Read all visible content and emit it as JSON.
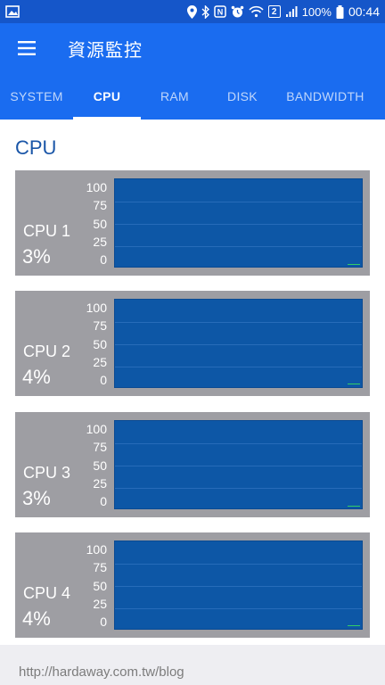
{
  "status_bar": {
    "battery_text": "100%",
    "time": "00:44",
    "notification_count": "2",
    "icons": [
      "image-icon",
      "location-icon",
      "bluetooth-icon",
      "nfc-icon",
      "alarm-icon",
      "wifi-icon",
      "signal-icon",
      "battery-icon"
    ]
  },
  "app_bar": {
    "title": "資源監控",
    "menu_icon": "hamburger-menu-icon"
  },
  "tabs": [
    {
      "label": "SYSTEM"
    },
    {
      "label": "CPU",
      "active": true
    },
    {
      "label": "RAM"
    },
    {
      "label": "DISK"
    },
    {
      "label": "BANDWIDTH"
    }
  ],
  "section_title": "CPU",
  "axis_ticks": [
    "100",
    "75",
    "50",
    "25",
    "0"
  ],
  "cpus": [
    {
      "name": "CPU 1",
      "percent_label": "3%",
      "usage": 3
    },
    {
      "name": "CPU 2",
      "percent_label": "4%",
      "usage": 4
    },
    {
      "name": "CPU 3",
      "percent_label": "3%",
      "usage": 3
    },
    {
      "name": "CPU 4",
      "percent_label": "4%",
      "usage": 4
    }
  ],
  "colors": {
    "app_bar": "#1a6cf0",
    "status_bar": "#1556c9",
    "card": "#9e9ea3",
    "plot": "#0d57a6",
    "usage_line": "#33cc66",
    "section_title": "#1a56a8"
  },
  "watermark": "http://hardaway.com.tw/blog"
}
